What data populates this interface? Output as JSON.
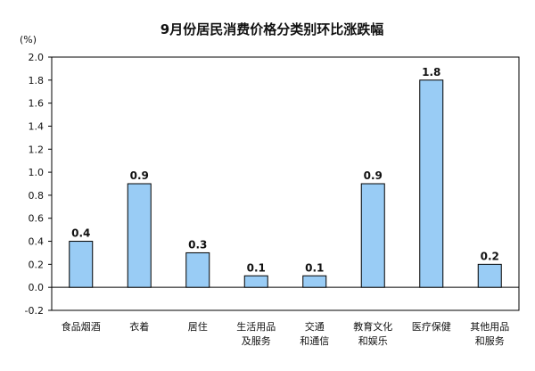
{
  "chart_data": {
    "type": "bar",
    "title": "9月份居民消费价格分类别环比涨跌幅",
    "unit": "(%)",
    "categories": [
      [
        "食品烟酒"
      ],
      [
        "衣着"
      ],
      [
        "居住"
      ],
      [
        "生活用品",
        "及服务"
      ],
      [
        "交通",
        "和通信"
      ],
      [
        "教育文化",
        "和娱乐"
      ],
      [
        "医疗保健"
      ],
      [
        "其他用品",
        "和服务"
      ]
    ],
    "values": [
      0.4,
      0.9,
      0.3,
      0.1,
      0.1,
      0.9,
      1.8,
      0.2
    ],
    "value_labels": [
      "0.4",
      "0.9",
      "0.3",
      "0.1",
      "0.1",
      "0.9",
      "1.8",
      "0.2"
    ],
    "ylim": [
      -0.2,
      2.0
    ],
    "yticks": [
      -0.2,
      0.0,
      0.2,
      0.4,
      0.6,
      0.8,
      1.0,
      1.2,
      1.4,
      1.6,
      1.8,
      2.0
    ],
    "ytick_labels": [
      "-0.2",
      "0.0",
      "0.2",
      "0.4",
      "0.6",
      "0.8",
      "1.0",
      "1.2",
      "1.4",
      "1.6",
      "1.8",
      "2.0"
    ],
    "colors": {
      "bar_fill": "#99ccf5",
      "bar_stroke": "#000000",
      "frame": "#000000",
      "text": "#111111"
    }
  }
}
